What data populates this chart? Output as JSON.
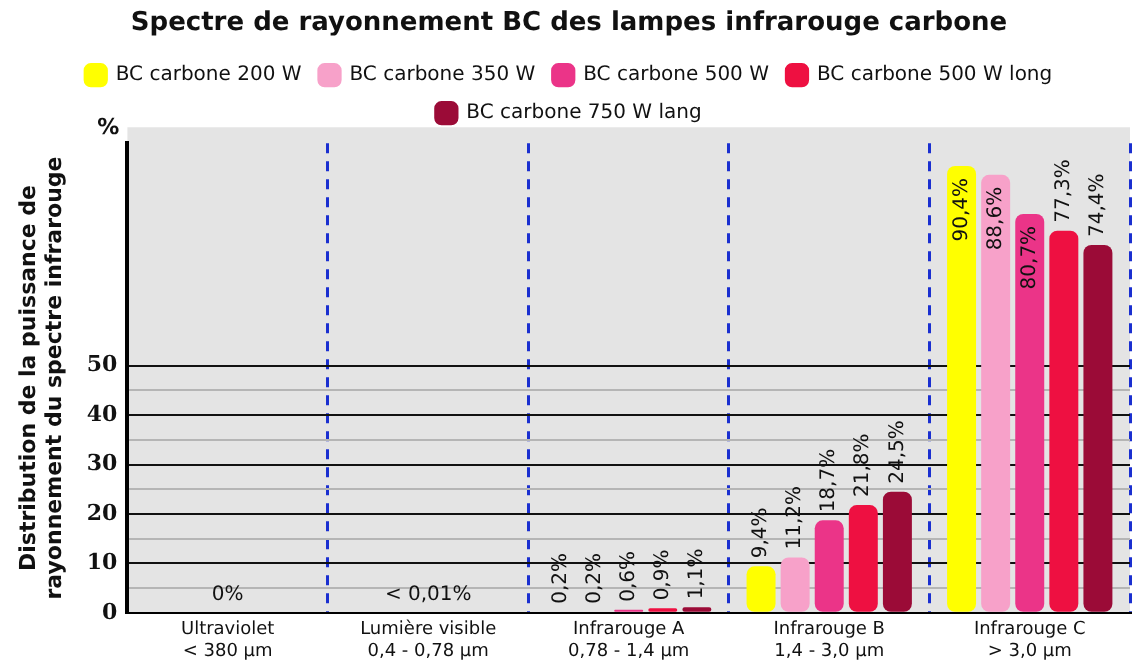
{
  "chart_data": {
    "type": "bar",
    "title": "Spectre de rayonnement BC des lampes infrarouge carbone",
    "ylabel": "Distribution de la puissance de rayonnement du spectre infrarouge",
    "annotations": [
      "%"
    ],
    "categories": [
      "Ultraviolet\n< 380 µm",
      "Lumière visible\n0,4 - 0,78 µm",
      "Infrarouge A\n0,78 - 1,4 µm",
      "Infrarouge B\n1,4 - 3,0 µm",
      "Infrarouge C\n> 3,0 µm"
    ],
    "series": [
      {
        "name": "BC carbone 200 W",
        "color": "#ffff00",
        "values": [
          0,
          0,
          0.2,
          9.4,
          90.4
        ],
        "value_labels": [
          null,
          null,
          "0,2%",
          "9,4%",
          "90,4%"
        ]
      },
      {
        "name": "BC carbone 350 W",
        "color": "#f7a1c9",
        "values": [
          0,
          0,
          0.2,
          11.2,
          88.6
        ],
        "value_labels": [
          null,
          null,
          "0,2%",
          "11,2%",
          "88,6%"
        ]
      },
      {
        "name": "BC carbone 500 W",
        "color": "#eb3488",
        "values": [
          0,
          0,
          0.6,
          18.7,
          80.7
        ],
        "value_labels": [
          "0%",
          "< 0,01%",
          "0,6%",
          "18,7%",
          "80,7%"
        ]
      },
      {
        "name": "BC carbone 500 W long",
        "color": "#ee1041",
        "values": [
          0,
          0,
          0.9,
          21.8,
          77.3
        ],
        "value_labels": [
          null,
          null,
          "0,9%",
          "21,8%",
          "77,3%"
        ]
      },
      {
        "name": "BC carbone 750 W lang",
        "color": "#9b0b37",
        "values": [
          0,
          0,
          1.1,
          24.5,
          74.4
        ],
        "value_labels": [
          null,
          null,
          "1,1%",
          "24,5%",
          "74,4%"
        ]
      }
    ],
    "ylim": [
      0,
      95
    ],
    "yticks": [
      0,
      {
        "value": 5,
        "label": null
      },
      10,
      {
        "value": 15,
        "label": null
      },
      20,
      {
        "value": 25,
        "label": null
      },
      30,
      {
        "value": 35,
        "label": null
      },
      40,
      {
        "value": 45,
        "label": null
      },
      50
    ],
    "grid": true,
    "legend": "top"
  }
}
